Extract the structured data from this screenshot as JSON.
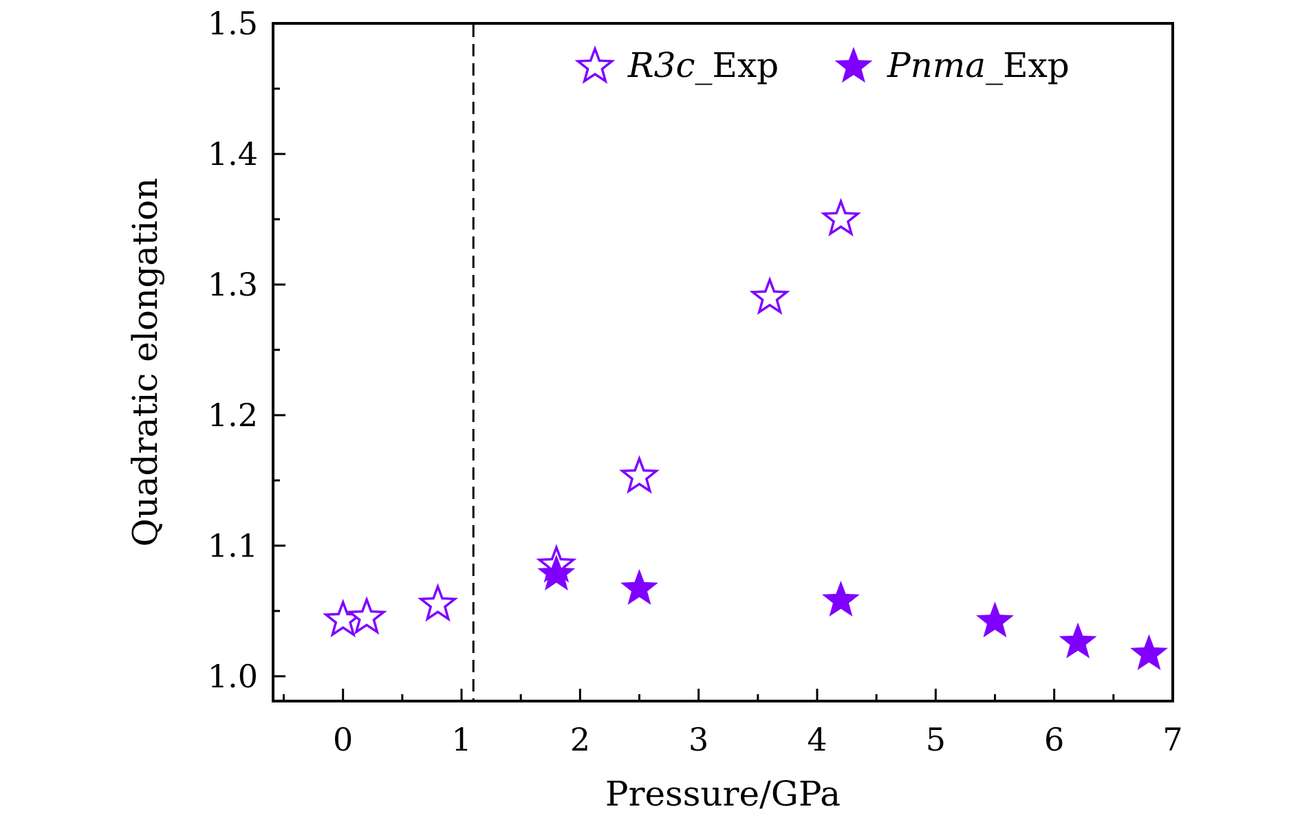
{
  "chart_data": {
    "type": "scatter",
    "title": "",
    "xlabel": "Pressure/GPa",
    "ylabel": "Quadratic elongation",
    "xlim": [
      -0.59,
      7.0
    ],
    "ylim": [
      0.981,
      1.5
    ],
    "xticks": [
      0,
      1,
      2,
      3,
      4,
      5,
      6,
      7
    ],
    "xtick_labels": [
      "0",
      "1",
      "2",
      "3",
      "4",
      "5",
      "6",
      "7"
    ],
    "yticks": [
      1.0,
      1.1,
      1.2,
      1.3,
      1.4,
      1.5
    ],
    "ytick_labels": [
      "1.0",
      "1.1",
      "1.2",
      "1.3",
      "1.4",
      "1.5"
    ],
    "grid": false,
    "legend_position": "top-right",
    "reference_line": {
      "x": 1.1,
      "style": "dashed"
    },
    "series": [
      {
        "name": "R3c_Exp",
        "legend_italic": "R3c",
        "legend_suffix": "_Exp",
        "marker": "star-open",
        "color": "#7F00FF",
        "x": [
          0,
          0.2,
          0.8,
          1.8,
          2.5,
          3.6,
          4.2
        ],
        "y": [
          1.043,
          1.045,
          1.055,
          1.085,
          1.153,
          1.29,
          1.35
        ]
      },
      {
        "name": "Pnma_Exp",
        "legend_italic": "Pnma",
        "legend_suffix": "_Exp",
        "marker": "star-filled",
        "color": "#7F00FF",
        "x": [
          1.8,
          2.5,
          4.2,
          5.5,
          6.2,
          6.8
        ],
        "y": [
          1.078,
          1.067,
          1.058,
          1.042,
          1.026,
          1.017
        ]
      }
    ]
  }
}
